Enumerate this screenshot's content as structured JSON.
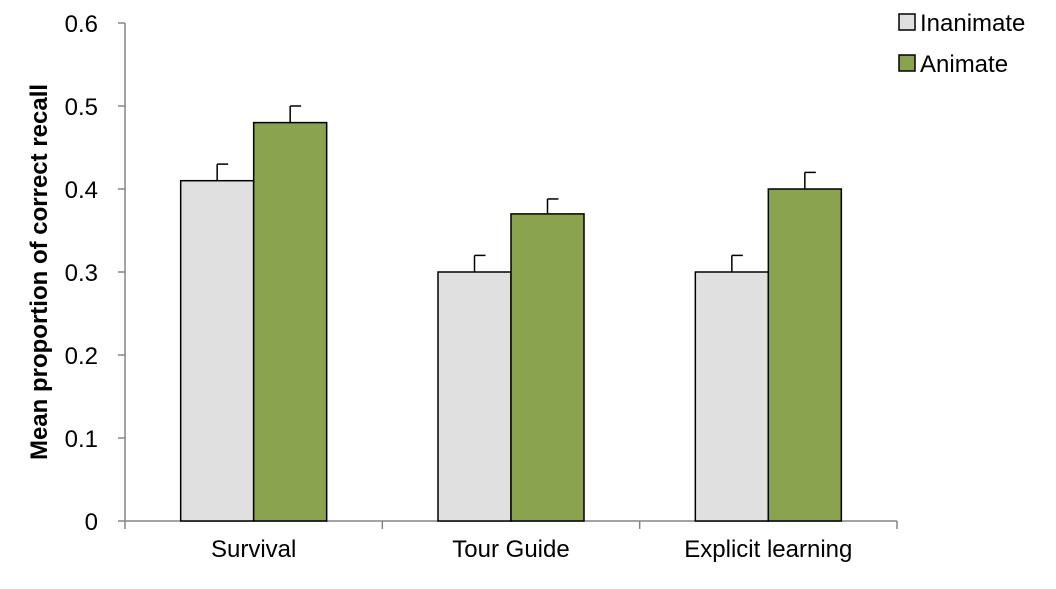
{
  "chart_data": {
    "type": "bar",
    "title": "",
    "xlabel": "",
    "ylabel": "Mean proportion of correct recall",
    "ylim": [
      0,
      0.6
    ],
    "yticks": [
      "0",
      "0.1",
      "0.2",
      "0.3",
      "0.4",
      "0.5",
      "0.6"
    ],
    "categories": [
      "Survival",
      "Tour Guide",
      "Explicit learning"
    ],
    "series": [
      {
        "name": "Inanimate",
        "values": [
          0.41,
          0.3,
          0.3
        ],
        "errors": [
          0.02,
          0.02,
          0.02
        ],
        "color": "#e0e0e0"
      },
      {
        "name": "Animate",
        "values": [
          0.48,
          0.37,
          0.4
        ],
        "errors": [
          0.02,
          0.018,
          0.02
        ],
        "color": "#8aa34f"
      }
    ],
    "grid": false,
    "legend_position": "top-right"
  }
}
